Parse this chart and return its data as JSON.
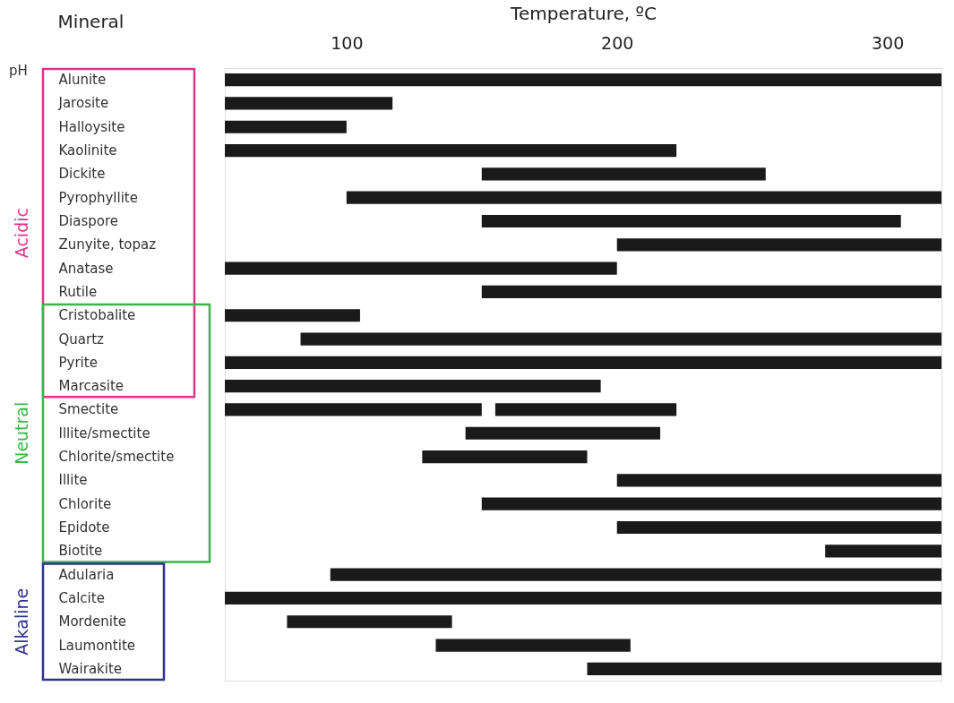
{
  "chart_data": {
    "type": "bar",
    "orientation": "horizontal",
    "xlabel": "Temperature, ºC",
    "ylabel": "Mineral",
    "categories": [
      "Alunite",
      "Jarosite",
      "Halloysite",
      "Kaolinite",
      "Dickite",
      "Pyrophyllite",
      "Diaspore",
      "Zunyite, topaz",
      "Anatase",
      "Rutile",
      "Cristobalite",
      "Quartz",
      "Pyrite",
      "Marcasite",
      "Smectite",
      "Illite/smectite",
      "Chlorite/smectite",
      "Illite",
      "Chlorite",
      "Epidote",
      "Biotite",
      "Adularia",
      "Calcite",
      "Mordenite",
      "Laumontite",
      "Wairakite"
    ],
    "series": [
      {
        "color": "#1a1a1a",
        "base": [
          55,
          55,
          55,
          55,
          150,
          100,
          150,
          200,
          55,
          150,
          55,
          83,
          55,
          55,
          55,
          144,
          128,
          200,
          150,
          200,
          277,
          94,
          55,
          78,
          133,
          189
        ],
        "values": [
          265,
          62,
          45,
          167,
          105,
          220,
          155,
          120,
          145,
          170,
          50,
          237,
          265,
          139,
          95,
          72,
          61,
          120,
          170,
          120,
          43,
          226,
          265,
          61,
          72,
          131
        ]
      },
      {
        "color": "#1a1a1a",
        "base": [
          null,
          null,
          null,
          null,
          null,
          null,
          null,
          null,
          null,
          null,
          null,
          null,
          null,
          null,
          155,
          null,
          null,
          null,
          null,
          null,
          null,
          null,
          null,
          null,
          null,
          null
        ],
        "values": [
          null,
          null,
          null,
          null,
          null,
          null,
          null,
          null,
          null,
          null,
          null,
          null,
          null,
          null,
          67,
          null,
          null,
          null,
          null,
          null,
          null,
          null,
          null,
          null,
          null,
          null
        ]
      }
    ],
    "xlim": [
      55,
      320
    ],
    "xticks": [
      100,
      200,
      300
    ],
    "grid": false,
    "annotations": [
      "pH",
      "Acidic",
      "Neutral",
      "Alkaline"
    ]
  }
}
